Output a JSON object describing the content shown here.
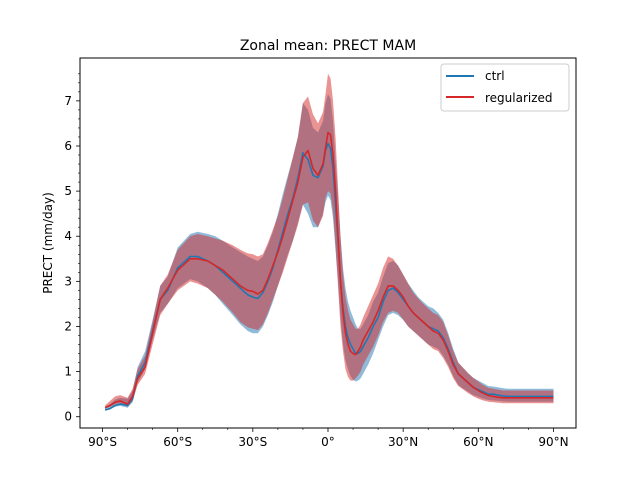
{
  "chart_data": {
    "type": "line",
    "title": "Zonal mean: PRECT MAM",
    "xlabel": "",
    "ylabel": "PRECT (mm/day)",
    "xlim": [
      -99,
      99
    ],
    "ylim": [
      -0.25,
      7.95
    ],
    "x_ticks": [
      -90,
      -60,
      -30,
      0,
      30,
      60,
      90
    ],
    "x_tick_labels": [
      "90°S",
      "60°S",
      "30°S",
      "0°",
      "30°N",
      "60°N",
      "90°N"
    ],
    "y_ticks": [
      0,
      1,
      2,
      3,
      4,
      5,
      6,
      7
    ],
    "y_tick_labels": [
      "0",
      "1",
      "2",
      "3",
      "4",
      "5",
      "6",
      "7"
    ],
    "grid": false,
    "legend_position": "upper-right",
    "series": [
      {
        "name": "ctrl",
        "color": "#1f77b4",
        "band_color": "#1f77b4",
        "x": [
          -89,
          -87,
          -85,
          -83,
          -80,
          -78,
          -76,
          -73,
          -70,
          -67,
          -64,
          -60,
          -55,
          -52,
          -48,
          -45,
          -42,
          -38,
          -35,
          -32,
          -30,
          -28,
          -26,
          -24,
          -22,
          -20,
          -18,
          -16,
          -14,
          -12,
          -10,
          -8,
          -6,
          -4,
          -2,
          -1,
          0,
          1,
          2,
          3,
          4,
          5,
          6,
          7,
          8,
          9,
          10,
          11,
          12,
          13,
          14,
          16,
          18,
          20,
          22,
          24,
          26,
          28,
          30,
          32,
          34,
          36,
          38,
          40,
          42,
          44,
          46,
          48,
          50,
          52,
          54,
          56,
          58,
          60,
          62,
          64,
          66,
          68,
          70,
          72,
          74,
          76,
          78,
          80,
          82,
          84,
          86,
          88,
          90
        ],
        "values": [
          0.15,
          0.18,
          0.25,
          0.28,
          0.25,
          0.4,
          0.9,
          1.2,
          1.9,
          2.6,
          2.8,
          3.3,
          3.55,
          3.55,
          3.45,
          3.35,
          3.2,
          3.0,
          2.85,
          2.7,
          2.65,
          2.62,
          2.75,
          3.0,
          3.3,
          3.7,
          4.1,
          4.5,
          4.85,
          5.3,
          5.85,
          5.7,
          5.35,
          5.3,
          5.55,
          5.9,
          6.05,
          5.95,
          5.5,
          4.7,
          3.9,
          3.0,
          2.4,
          2.0,
          1.75,
          1.6,
          1.5,
          1.4,
          1.4,
          1.45,
          1.55,
          1.75,
          2.0,
          2.2,
          2.55,
          2.8,
          2.85,
          2.75,
          2.6,
          2.45,
          2.3,
          2.2,
          2.1,
          2.0,
          1.95,
          1.9,
          1.75,
          1.5,
          1.2,
          0.95,
          0.85,
          0.75,
          0.65,
          0.6,
          0.55,
          0.5,
          0.5,
          0.48,
          0.46,
          0.45,
          0.45,
          0.45,
          0.45,
          0.45,
          0.45,
          0.45,
          0.45,
          0.45,
          0.45
        ],
        "lower": [
          0.15,
          0.17,
          0.22,
          0.24,
          0.2,
          0.32,
          0.75,
          1.05,
          1.7,
          2.3,
          2.5,
          2.85,
          3.05,
          3.0,
          2.85,
          2.7,
          2.5,
          2.25,
          2.05,
          1.9,
          1.85,
          1.85,
          2.0,
          2.25,
          2.55,
          2.9,
          3.25,
          3.6,
          3.9,
          4.3,
          4.7,
          4.5,
          4.2,
          4.2,
          4.5,
          4.75,
          4.9,
          4.8,
          4.4,
          3.7,
          3.0,
          2.2,
          1.6,
          1.25,
          1.05,
          0.9,
          0.82,
          0.78,
          0.8,
          0.85,
          0.95,
          1.15,
          1.4,
          1.7,
          2.0,
          2.25,
          2.3,
          2.25,
          2.15,
          2.0,
          1.9,
          1.8,
          1.7,
          1.6,
          1.55,
          1.5,
          1.35,
          1.15,
          0.9,
          0.7,
          0.62,
          0.55,
          0.48,
          0.44,
          0.4,
          0.37,
          0.36,
          0.35,
          0.34,
          0.33,
          0.33,
          0.33,
          0.33,
          0.33,
          0.33,
          0.33,
          0.33,
          0.33,
          0.33
        ],
        "upper": [
          0.22,
          0.28,
          0.38,
          0.42,
          0.4,
          0.58,
          1.1,
          1.45,
          2.15,
          2.9,
          3.1,
          3.75,
          4.05,
          4.1,
          4.05,
          4.0,
          3.9,
          3.75,
          3.65,
          3.55,
          3.5,
          3.45,
          3.55,
          3.8,
          4.1,
          4.5,
          4.95,
          5.35,
          5.75,
          6.2,
          6.95,
          6.8,
          6.4,
          6.3,
          6.55,
          6.95,
          7.15,
          7.05,
          6.55,
          5.7,
          4.9,
          4.0,
          3.3,
          2.85,
          2.55,
          2.35,
          2.2,
          2.05,
          1.95,
          1.95,
          2.05,
          2.25,
          2.55,
          2.75,
          3.1,
          3.4,
          3.45,
          3.35,
          3.15,
          2.95,
          2.8,
          2.65,
          2.55,
          2.45,
          2.4,
          2.3,
          2.15,
          1.85,
          1.5,
          1.2,
          1.08,
          0.96,
          0.86,
          0.8,
          0.74,
          0.68,
          0.67,
          0.65,
          0.63,
          0.62,
          0.62,
          0.62,
          0.62,
          0.62,
          0.62,
          0.62,
          0.62,
          0.62,
          0.62
        ]
      },
      {
        "name": "regularized",
        "color": "#d62728",
        "band_color": "#d62728",
        "x": [
          -89,
          -87,
          -85,
          -83,
          -80,
          -78,
          -76,
          -73,
          -70,
          -67,
          -64,
          -60,
          -55,
          -52,
          -48,
          -45,
          -42,
          -38,
          -35,
          -32,
          -30,
          -28,
          -26,
          -24,
          -22,
          -20,
          -18,
          -16,
          -14,
          -12,
          -10,
          -8,
          -6,
          -4,
          -2,
          -1,
          0,
          1,
          2,
          3,
          4,
          5,
          6,
          7,
          8,
          9,
          10,
          11,
          12,
          13,
          14,
          16,
          18,
          20,
          22,
          24,
          26,
          28,
          30,
          32,
          34,
          36,
          38,
          40,
          42,
          44,
          46,
          48,
          50,
          52,
          54,
          56,
          58,
          60,
          62,
          64,
          66,
          68,
          70,
          72,
          74,
          76,
          78,
          80,
          82,
          84,
          86,
          88,
          90
        ],
        "values": [
          0.2,
          0.25,
          0.32,
          0.35,
          0.28,
          0.45,
          0.85,
          1.1,
          1.85,
          2.6,
          2.85,
          3.25,
          3.5,
          3.5,
          3.45,
          3.35,
          3.25,
          3.05,
          2.9,
          2.8,
          2.78,
          2.72,
          2.8,
          3.05,
          3.35,
          3.65,
          4.0,
          4.4,
          4.8,
          5.2,
          5.75,
          5.9,
          5.5,
          5.35,
          5.6,
          5.95,
          6.3,
          6.25,
          5.8,
          5.0,
          4.0,
          3.0,
          2.3,
          1.85,
          1.6,
          1.45,
          1.4,
          1.38,
          1.45,
          1.55,
          1.7,
          1.9,
          2.1,
          2.35,
          2.65,
          2.9,
          2.9,
          2.8,
          2.65,
          2.45,
          2.3,
          2.2,
          2.1,
          2.0,
          1.9,
          1.85,
          1.7,
          1.45,
          1.15,
          0.95,
          0.85,
          0.75,
          0.65,
          0.58,
          0.52,
          0.47,
          0.45,
          0.43,
          0.42,
          0.42,
          0.42,
          0.42,
          0.42,
          0.42,
          0.42,
          0.42,
          0.42,
          0.42,
          0.42
        ],
        "lower": [
          0.18,
          0.22,
          0.28,
          0.3,
          0.22,
          0.35,
          0.7,
          0.95,
          1.6,
          2.25,
          2.5,
          2.8,
          3.0,
          2.95,
          2.85,
          2.7,
          2.55,
          2.3,
          2.1,
          1.98,
          1.95,
          1.92,
          2.05,
          2.3,
          2.6,
          2.9,
          3.2,
          3.55,
          3.9,
          4.25,
          4.7,
          4.75,
          4.35,
          4.2,
          4.45,
          4.85,
          5.0,
          4.95,
          4.55,
          3.8,
          2.9,
          2.0,
          1.45,
          1.05,
          0.88,
          0.8,
          0.8,
          0.85,
          0.92,
          1.0,
          1.15,
          1.35,
          1.55,
          1.8,
          2.1,
          2.3,
          2.35,
          2.3,
          2.15,
          2.0,
          1.9,
          1.8,
          1.7,
          1.6,
          1.5,
          1.45,
          1.3,
          1.1,
          0.85,
          0.68,
          0.6,
          0.52,
          0.45,
          0.4,
          0.36,
          0.33,
          0.32,
          0.31,
          0.3,
          0.3,
          0.3,
          0.3,
          0.3,
          0.3,
          0.3,
          0.3,
          0.3,
          0.3,
          0.3
        ],
        "upper": [
          0.25,
          0.35,
          0.45,
          0.48,
          0.42,
          0.62,
          1.05,
          1.35,
          2.1,
          2.9,
          3.15,
          3.7,
          4.0,
          4.05,
          4.0,
          3.95,
          3.9,
          3.8,
          3.7,
          3.62,
          3.6,
          3.55,
          3.6,
          3.85,
          4.15,
          4.45,
          4.85,
          5.3,
          5.75,
          6.2,
          6.95,
          7.1,
          6.7,
          6.5,
          6.75,
          7.15,
          7.6,
          7.5,
          7.0,
          6.2,
          5.1,
          4.0,
          3.15,
          2.65,
          2.35,
          2.15,
          2.05,
          1.95,
          1.95,
          2.05,
          2.2,
          2.45,
          2.7,
          2.95,
          3.3,
          3.55,
          3.5,
          3.35,
          3.15,
          2.95,
          2.75,
          2.62,
          2.5,
          2.4,
          2.3,
          2.25,
          2.1,
          1.8,
          1.45,
          1.2,
          1.08,
          0.96,
          0.86,
          0.78,
          0.7,
          0.64,
          0.62,
          0.6,
          0.58,
          0.58,
          0.58,
          0.58,
          0.58,
          0.58,
          0.58,
          0.58,
          0.58,
          0.58,
          0.58
        ]
      }
    ]
  }
}
